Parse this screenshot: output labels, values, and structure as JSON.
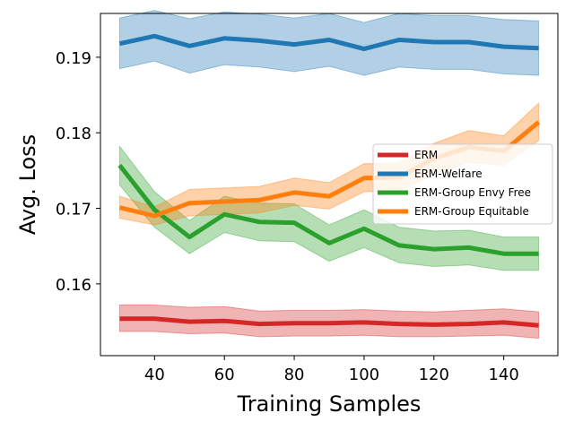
{
  "chart_data": {
    "type": "line",
    "title": "",
    "xlabel": "Training Samples",
    "ylabel": "Avg. Loss",
    "xlim": [
      24.5,
      155.5
    ],
    "ylim": [
      0.1505,
      0.1958
    ],
    "xticks": [
      40,
      60,
      80,
      100,
      120,
      140
    ],
    "yticks": [
      0.16,
      0.17,
      0.18,
      0.19
    ],
    "grid": false,
    "legend_position": "center-right",
    "x": [
      30,
      40,
      50,
      60,
      70,
      80,
      90,
      100,
      110,
      120,
      130,
      140,
      150
    ],
    "series": [
      {
        "name": "ERM",
        "color": "#d62728",
        "values": [
          0.1554,
          0.1554,
          0.155,
          0.1551,
          0.1547,
          0.1548,
          0.1548,
          0.1549,
          0.1547,
          0.1546,
          0.1547,
          0.1549,
          0.1545
        ],
        "lower": [
          0.1537,
          0.1537,
          0.1534,
          0.1535,
          0.153,
          0.1531,
          0.1531,
          0.1532,
          0.153,
          0.153,
          0.1531,
          0.1532,
          0.1528
        ],
        "upper": [
          0.1572,
          0.1572,
          0.1569,
          0.157,
          0.1564,
          0.1565,
          0.1565,
          0.1566,
          0.1564,
          0.1563,
          0.1565,
          0.1567,
          0.1563
        ]
      },
      {
        "name": "ERM-Welfare",
        "color": "#1f77b4",
        "values": [
          0.1918,
          0.1928,
          0.1915,
          0.1925,
          0.1922,
          0.1917,
          0.1923,
          0.1911,
          0.1923,
          0.192,
          0.192,
          0.1914,
          0.1912
        ],
        "lower": [
          0.1885,
          0.1895,
          0.1879,
          0.189,
          0.1887,
          0.1881,
          0.1888,
          0.1876,
          0.1887,
          0.1884,
          0.1884,
          0.1878,
          0.1876
        ],
        "upper": [
          0.1952,
          0.1962,
          0.1951,
          0.196,
          0.1957,
          0.1952,
          0.1958,
          0.1946,
          0.1958,
          0.1955,
          0.1955,
          0.195,
          0.1948
        ]
      },
      {
        "name": "ERM-Group Envy Free",
        "color": "#2ca02c",
        "values": [
          0.1757,
          0.1698,
          0.1662,
          0.1692,
          0.1682,
          0.1681,
          0.1654,
          0.1673,
          0.1651,
          0.1646,
          0.1648,
          0.164,
          0.164
        ],
        "lower": [
          0.1731,
          0.1675,
          0.164,
          0.1668,
          0.1657,
          0.1656,
          0.163,
          0.1648,
          0.1628,
          0.1623,
          0.1625,
          0.1618,
          0.1618
        ],
        "upper": [
          0.1782,
          0.1722,
          0.1684,
          0.1716,
          0.1707,
          0.1706,
          0.1678,
          0.1698,
          0.1675,
          0.167,
          0.1671,
          0.1662,
          0.1662
        ]
      },
      {
        "name": "ERM-Group Equitable",
        "color": "#ff7f0e",
        "values": [
          0.1701,
          0.169,
          0.1707,
          0.1709,
          0.1711,
          0.1721,
          0.1716,
          0.174,
          0.1741,
          0.1766,
          0.1781,
          0.1776,
          0.1814
        ],
        "lower": [
          0.1687,
          0.1678,
          0.169,
          0.1692,
          0.1694,
          0.1704,
          0.1699,
          0.1722,
          0.1723,
          0.1746,
          0.1761,
          0.1757,
          0.179
        ],
        "upper": [
          0.1716,
          0.1702,
          0.1725,
          0.1727,
          0.1729,
          0.174,
          0.1734,
          0.1759,
          0.176,
          0.1786,
          0.1803,
          0.1796,
          0.1839
        ]
      }
    ]
  }
}
